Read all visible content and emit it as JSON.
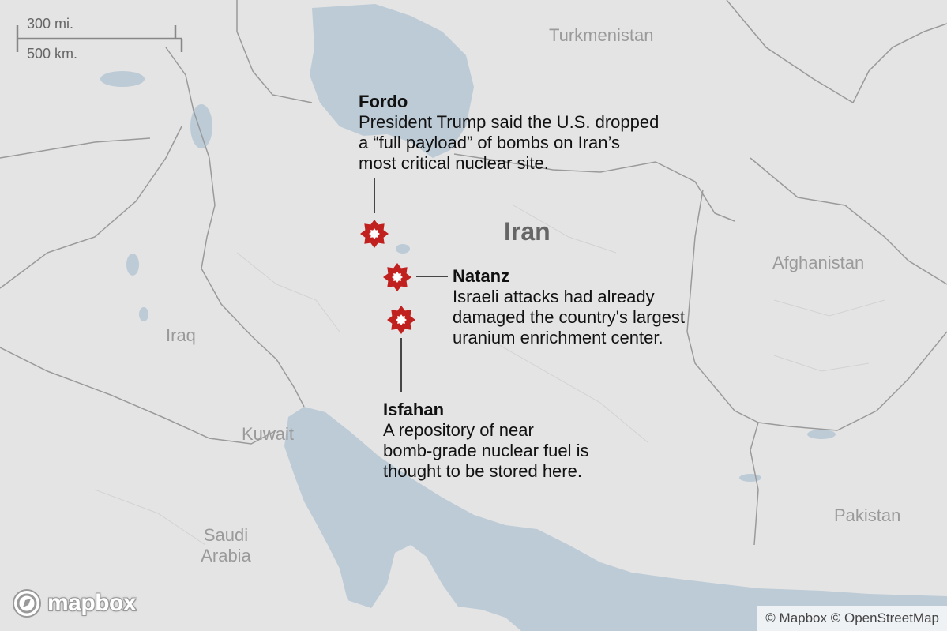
{
  "map": {
    "countries": {
      "turkmenistan": "Turkmenistan",
      "iran": "Iran",
      "afghanistan": "Afghanistan",
      "iraq": "Iraq",
      "kuwait": "Kuwait",
      "saudi_arabia_line1": "Saudi",
      "saudi_arabia_line2": "Arabia",
      "pakistan": "Pakistan"
    },
    "scale": {
      "miles": "300 mi.",
      "km": "500 km."
    },
    "sites": [
      {
        "name": "Fordo",
        "lines": [
          "President Trump said the U.S. dropped",
          "a “full payload” of bombs on Iran’s",
          "most critical nuclear site."
        ]
      },
      {
        "name": "Natanz",
        "lines": [
          "Israeli attacks had already",
          "damaged the country's largest",
          "uranium enrichment center."
        ]
      },
      {
        "name": "Isfahan",
        "lines": [
          "A repository of near",
          "bomb-grade nuclear fuel is",
          "thought to be stored here."
        ]
      }
    ],
    "logo": "mapbox",
    "attribution": "© Mapbox © OpenStreetMap",
    "colors": {
      "land": "#e4e4e4",
      "water": "#bccbd6",
      "border": "#9a9a9a",
      "marker": "#c0211f"
    }
  }
}
